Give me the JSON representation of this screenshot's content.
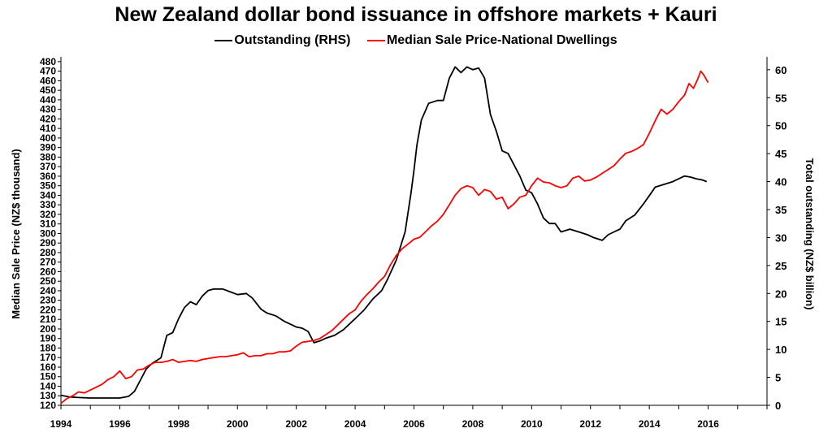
{
  "chart_data": {
    "type": "line",
    "title": "New Zealand dollar bond issuance in offshore markets + Kauri",
    "x_range": [
      1994,
      2018
    ],
    "x_ticks": [
      "1994",
      "1996",
      "1998",
      "2000",
      "2002",
      "2004",
      "2006",
      "2008",
      "2010",
      "2012",
      "2014",
      "2016"
    ],
    "left_axis": {
      "label": "Median Sale Price (NZ$ thousand)",
      "range": [
        120,
        485
      ],
      "ticks": [
        "120",
        "130",
        "140",
        "150",
        "160",
        "170",
        "180",
        "190",
        "200",
        "210",
        "220",
        "230",
        "240",
        "250",
        "260",
        "270",
        "280",
        "290",
        "300",
        "310",
        "320",
        "330",
        "340",
        "350",
        "360",
        "370",
        "380",
        "390",
        "400",
        "410",
        "420",
        "430",
        "440",
        "450",
        "460",
        "470",
        "480"
      ]
    },
    "right_axis": {
      "label": "Total outstanding (NZ$ billion)",
      "range": [
        0,
        62.3
      ],
      "ticks": [
        "0",
        "5",
        "10",
        "15",
        "20",
        "25",
        "30",
        "35",
        "40",
        "45",
        "50",
        "55",
        "60"
      ]
    },
    "legend_position": "top-center",
    "grid": false,
    "series": [
      {
        "name": "Outstanding (RHS)",
        "axis": "right",
        "color": "#000000",
        "x": [
          1994.0,
          1994.3,
          1994.6,
          1995.0,
          1995.5,
          1996.0,
          1996.3,
          1996.5,
          1996.7,
          1996.9,
          1997.1,
          1997.4,
          1997.6,
          1997.8,
          1998.0,
          1998.2,
          1998.4,
          1998.6,
          1998.8,
          1999.0,
          1999.2,
          1999.5,
          1999.8,
          2000.0,
          2000.3,
          2000.5,
          2000.8,
          2001.0,
          2001.3,
          2001.6,
          2002.0,
          2002.2,
          2002.4,
          2002.6,
          2002.8,
          2003.0,
          2003.3,
          2003.6,
          2004.0,
          2004.3,
          2004.6,
          2004.9,
          2005.1,
          2005.4,
          2005.7,
          2005.9,
          2006.0,
          2006.1,
          2006.25,
          2006.5,
          2006.8,
          2007.0,
          2007.2,
          2007.4,
          2007.6,
          2007.8,
          2008.0,
          2008.2,
          2008.4,
          2008.6,
          2008.8,
          2009.0,
          2009.2,
          2009.4,
          2009.6,
          2009.8,
          2010.0,
          2010.2,
          2010.4,
          2010.6,
          2010.8,
          2011.0,
          2011.3,
          2011.6,
          2011.9,
          2012.1,
          2012.4,
          2012.6,
          2012.8,
          2013.0,
          2013.2,
          2013.5,
          2013.8,
          2014.0,
          2014.2,
          2014.5,
          2014.8,
          2015.0,
          2015.2,
          2015.4,
          2015.6,
          2015.8,
          2015.95
        ],
        "values": [
          1.8,
          1.5,
          1.4,
          1.3,
          1.3,
          1.3,
          1.6,
          2.5,
          4.5,
          6.5,
          7.5,
          8.5,
          12.5,
          13.0,
          15.5,
          17.5,
          18.5,
          18.0,
          19.5,
          20.5,
          20.8,
          20.8,
          20.2,
          19.8,
          20.0,
          19.2,
          17.2,
          16.5,
          16.0,
          15.0,
          14.0,
          13.8,
          13.2,
          11.2,
          11.5,
          12.0,
          12.5,
          13.5,
          15.5,
          17.0,
          19.0,
          20.5,
          22.5,
          26.0,
          31.0,
          38.0,
          42.0,
          46.5,
          51.0,
          54.0,
          54.5,
          54.5,
          58.5,
          60.5,
          59.5,
          60.5,
          60.0,
          60.3,
          58.5,
          52.0,
          49.0,
          45.5,
          45.0,
          43.0,
          41.0,
          38.5,
          38.0,
          36.0,
          33.5,
          32.5,
          32.5,
          31.0,
          31.5,
          31.0,
          30.5,
          30.0,
          29.5,
          30.5,
          31.0,
          31.5,
          33.0,
          34.0,
          36.0,
          37.5,
          39.0,
          39.5,
          40.0,
          40.5,
          41.0,
          40.8,
          40.5,
          40.3,
          40.0
        ]
      },
      {
        "name": "Median Sale Price-National Dwellings",
        "axis": "left",
        "color": "#ff0000",
        "x": [
          1994.0,
          1994.2,
          1994.4,
          1994.6,
          1994.8,
          1995.0,
          1995.2,
          1995.4,
          1995.6,
          1995.8,
          1996.0,
          1996.2,
          1996.4,
          1996.6,
          1996.8,
          1997.0,
          1997.2,
          1997.4,
          1997.6,
          1997.8,
          1998.0,
          1998.2,
          1998.4,
          1998.6,
          1998.8,
          1999.0,
          1999.2,
          1999.4,
          1999.6,
          1999.8,
          2000.0,
          2000.2,
          2000.4,
          2000.6,
          2000.8,
          2001.0,
          2001.2,
          2001.4,
          2001.6,
          2001.8,
          2002.0,
          2002.2,
          2002.4,
          2002.6,
          2002.8,
          2003.0,
          2003.2,
          2003.4,
          2003.6,
          2003.8,
          2004.0,
          2004.2,
          2004.4,
          2004.6,
          2004.8,
          2005.0,
          2005.2,
          2005.4,
          2005.6,
          2005.8,
          2006.0,
          2006.2,
          2006.4,
          2006.6,
          2006.8,
          2007.0,
          2007.2,
          2007.4,
          2007.6,
          2007.8,
          2008.0,
          2008.2,
          2008.4,
          2008.6,
          2008.8,
          2009.0,
          2009.2,
          2009.4,
          2009.6,
          2009.8,
          2010.0,
          2010.2,
          2010.4,
          2010.6,
          2010.8,
          2011.0,
          2011.2,
          2011.4,
          2011.6,
          2011.8,
          2012.0,
          2012.2,
          2012.4,
          2012.6,
          2012.8,
          2013.0,
          2013.2,
          2013.4,
          2013.6,
          2013.8,
          2014.0,
          2014.2,
          2014.4,
          2014.6,
          2014.8,
          2015.0,
          2015.2,
          2015.35,
          2015.5,
          2015.65,
          2015.75,
          2015.85,
          2016.0
        ],
        "values": [
          122,
          127,
          130,
          134,
          133,
          136,
          139,
          142,
          147,
          150,
          156,
          148,
          150,
          157,
          158,
          162,
          165,
          165,
          166,
          168,
          165,
          166,
          167,
          166,
          168,
          169,
          170,
          171,
          171,
          172,
          173,
          175,
          171,
          172,
          172,
          174,
          174,
          176,
          176,
          177,
          182,
          186,
          187,
          188,
          190,
          194,
          198,
          204,
          210,
          216,
          220,
          229,
          236,
          242,
          249,
          255,
          267,
          277,
          284,
          289,
          294,
          296,
          302,
          308,
          313,
          320,
          330,
          340,
          347,
          350,
          348,
          340,
          346,
          344,
          336,
          338,
          326,
          331,
          338,
          340,
          350,
          358,
          354,
          353,
          350,
          348,
          350,
          358,
          360,
          355,
          356,
          359,
          363,
          367,
          371,
          378,
          384,
          386,
          389,
          393,
          405,
          418,
          430,
          425,
          430,
          438,
          445,
          457,
          452,
          462,
          470,
          466,
          458
        ]
      }
    ]
  }
}
